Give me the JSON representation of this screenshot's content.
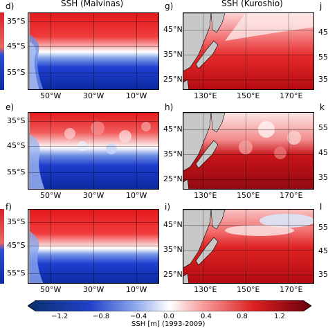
{
  "titles": {
    "malvinas": "SSH (Malvinas)",
    "kuroshio": "SSH (Kuroshio)"
  },
  "panel_labels": {
    "d": "d)",
    "e": "e)",
    "f": "f)",
    "g": "g)",
    "h": "h)",
    "i": "i)",
    "j": "j",
    "k": "k",
    "l": "l"
  },
  "malvinas_axes": {
    "x_ticks": [
      "50°W",
      "30°W",
      "10°W"
    ],
    "y_ticks": [
      "35°S",
      "45°S",
      "55°S"
    ]
  },
  "kuroshio_axes": {
    "x_ticks": [
      "130°E",
      "150°E",
      "170°E"
    ],
    "y_ticks": [
      "45°N",
      "35°N",
      "25°N"
    ]
  },
  "right_edge_ticks": {
    "j": [
      "45",
      "55",
      "35"
    ],
    "k": [
      "55",
      "45",
      "35"
    ],
    "l": [
      "55",
      "45",
      "35"
    ]
  },
  "colorbar": {
    "ticks": [
      "−1.2",
      "−0.8",
      "−0.4",
      "0.0",
      "0.4",
      "0.8",
      "1.2"
    ],
    "label": "SSH [m] (1993-2009)",
    "colors": [
      "#08306b",
      "#2171b5",
      "#6baed6",
      "#ffffff",
      "#fb6a4a",
      "#cb181d",
      "#67000d"
    ]
  }
}
